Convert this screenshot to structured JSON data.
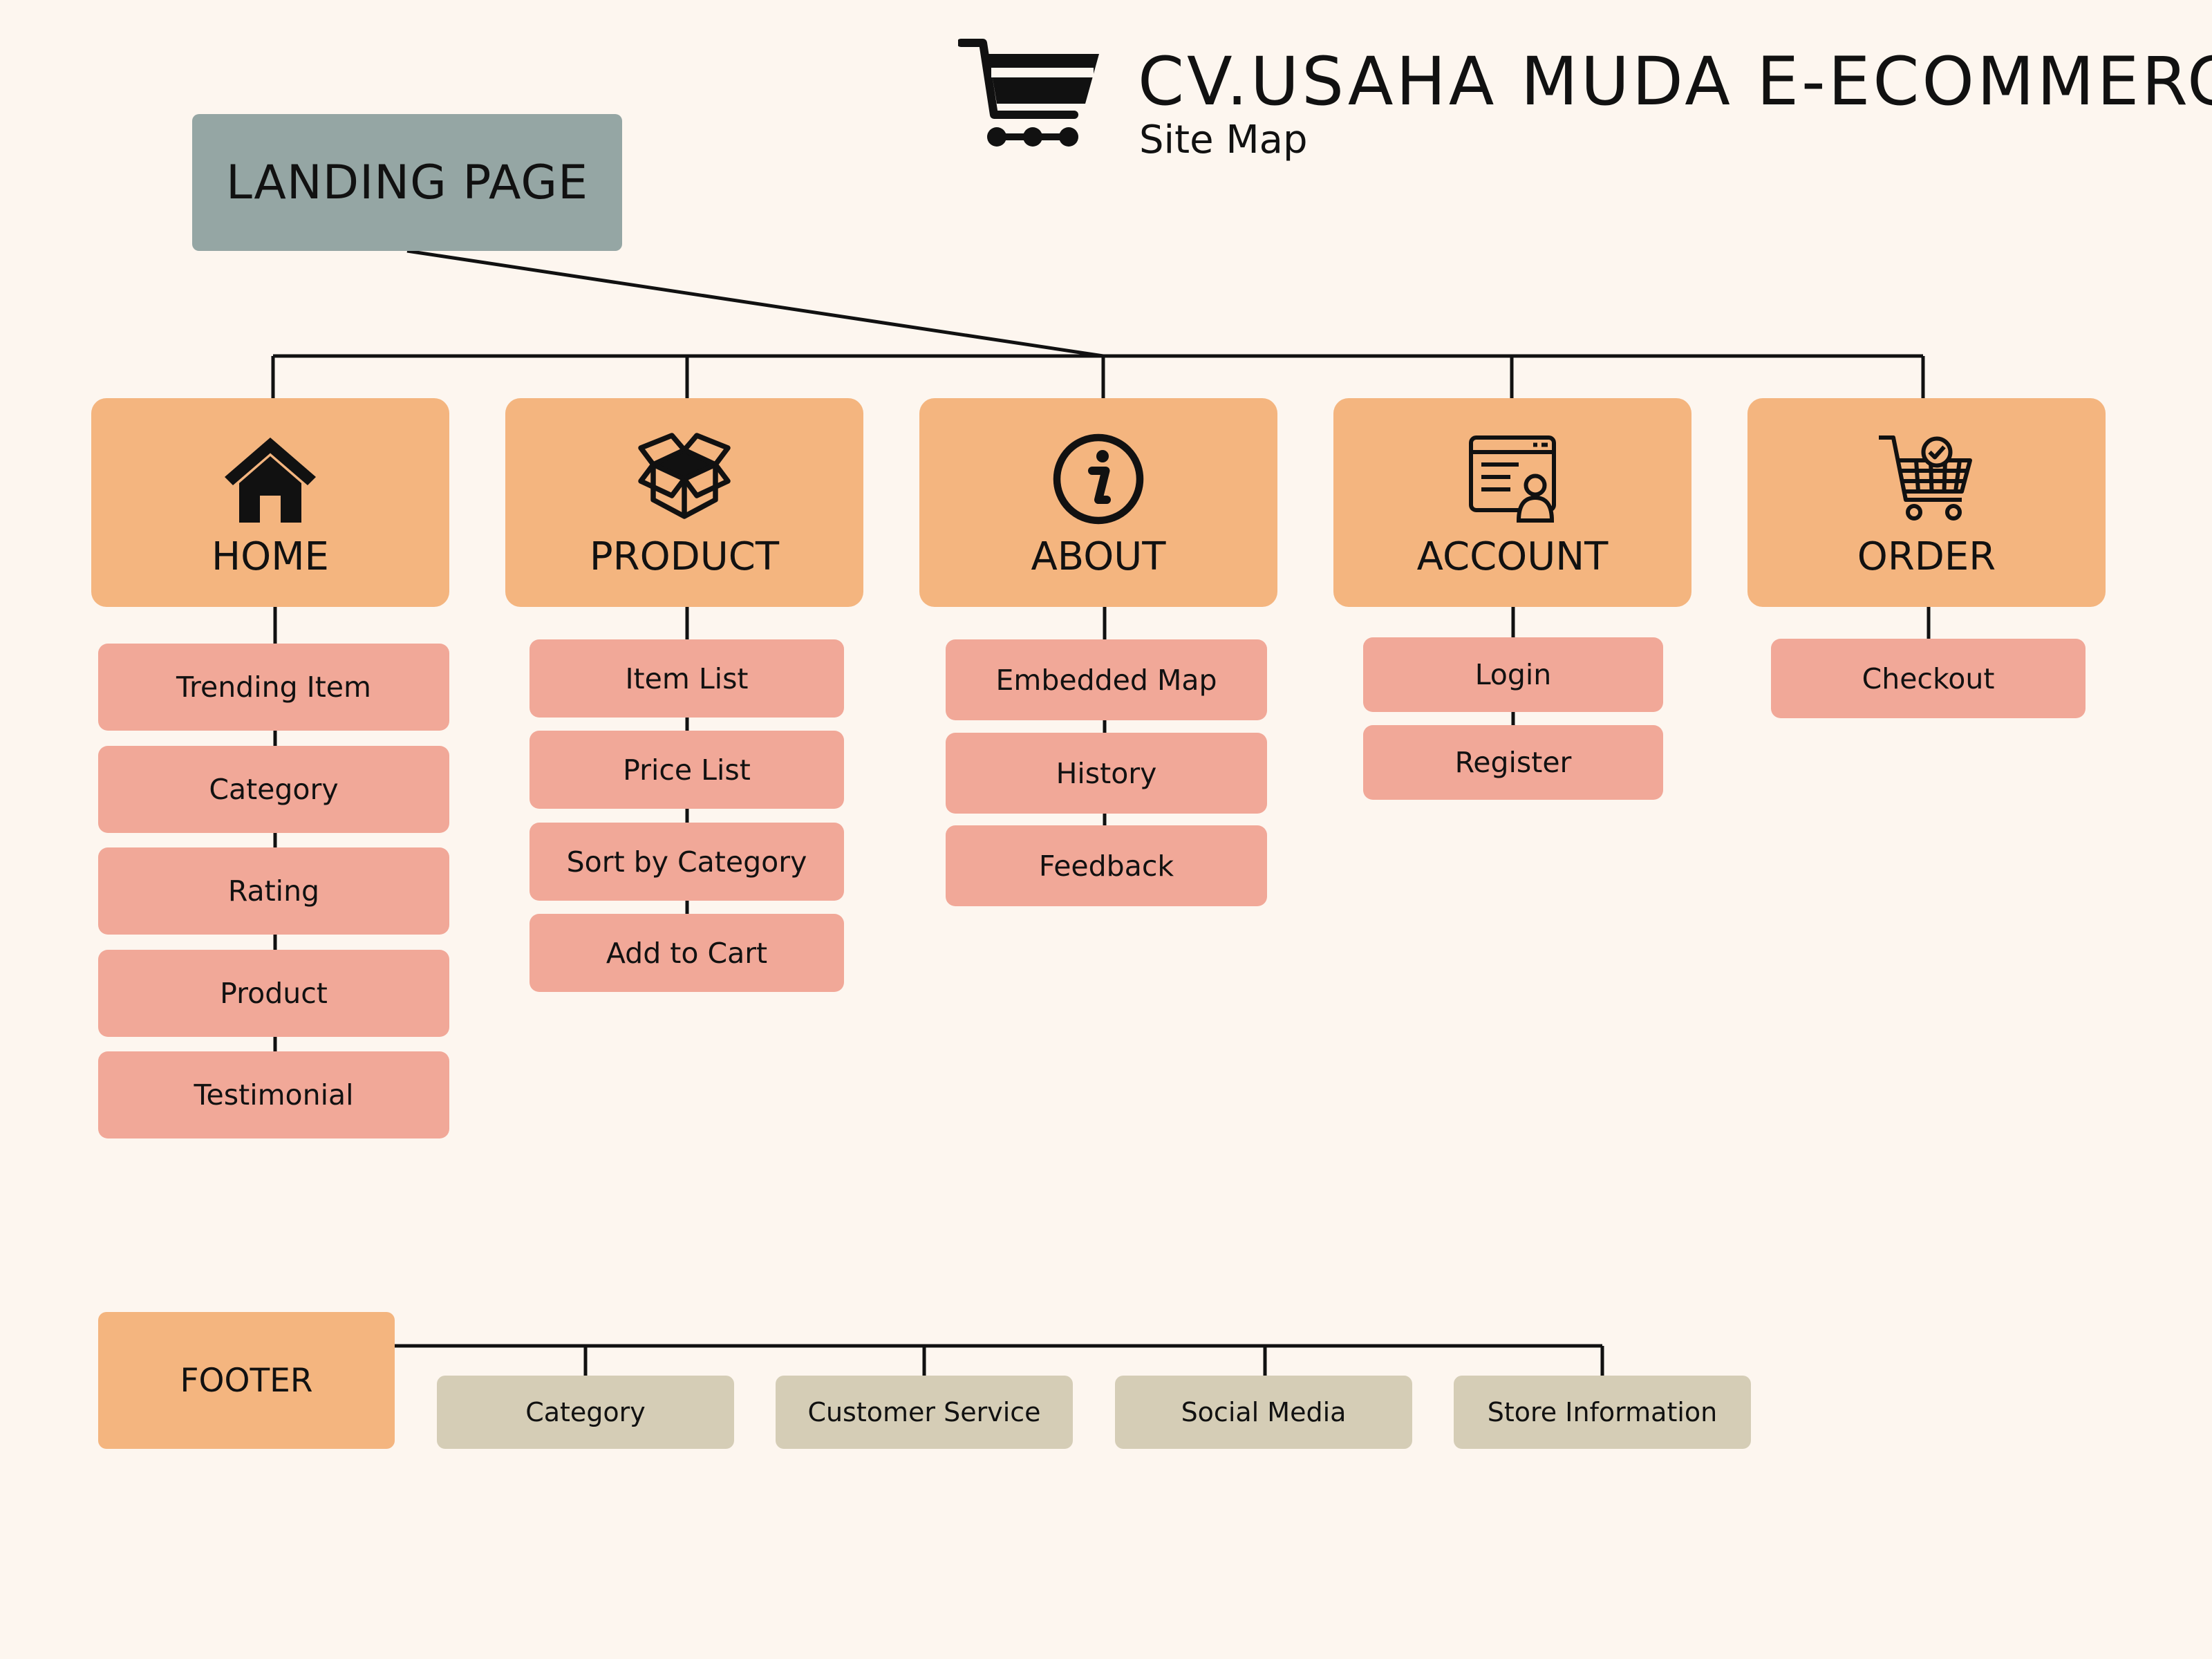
{
  "header": {
    "title": "CV.USAHA MUDA E-ECOMMERCE",
    "subtitle": "Site Map",
    "logo_icon": "shopping-cart-icon"
  },
  "landing": {
    "label": "LANDING PAGE"
  },
  "sections": [
    {
      "label": "HOME",
      "icon": "house-icon",
      "items": [
        "Trending Item",
        "Category",
        "Rating",
        "Product",
        "Testimonial"
      ]
    },
    {
      "label": "PRODUCT",
      "icon": "box-icon",
      "items": [
        "Item List",
        "Price List",
        "Sort by Category",
        "Add to Cart"
      ]
    },
    {
      "label": "ABOUT",
      "icon": "info-icon",
      "items": [
        "Embedded Map",
        "History",
        "Feedback"
      ]
    },
    {
      "label": "ACCOUNT",
      "icon": "user-profile-icon",
      "items": [
        "Login",
        "Register"
      ]
    },
    {
      "label": "ORDER",
      "icon": "cart-check-icon",
      "items": [
        "Checkout"
      ]
    }
  ],
  "footer": {
    "label": "FOOTER",
    "items": [
      "Category",
      "Customer Service",
      "Social Media",
      "Store Information"
    ]
  },
  "colors": {
    "background": "#fdf6ef",
    "landing": "#95a6a4",
    "category": "#f4b57f",
    "subitem": "#f1a898",
    "footer_item": "#d5cdb6",
    "line": "#111111"
  }
}
